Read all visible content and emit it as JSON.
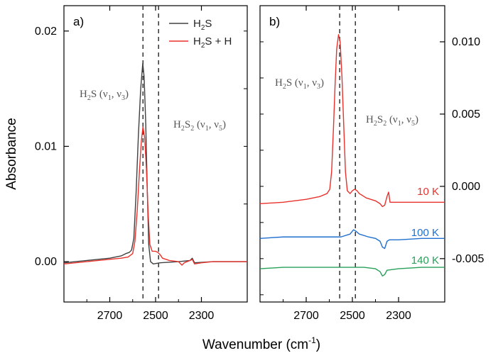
{
  "figure": {
    "xlabel": "Wavenumber (cm",
    "xlabel_sup": "-1",
    "xlabel_end": ")",
    "ylabel": "Absorbance"
  },
  "chart_data": [
    {
      "panel": "a)",
      "type": "line",
      "xlabel": "Wavenumber (cm-1)",
      "ylabel": "Absorbance",
      "xlim": [
        2900,
        2100
      ],
      "ylim": [
        -0.0035,
        0.0222
      ],
      "x_ticks": [
        "2700",
        "2500",
        "2300"
      ],
      "x_tick_values": [
        2700,
        2500,
        2300
      ],
      "y_ticks": [
        "0.00",
        "0.01",
        "0.02"
      ],
      "y_tick_values": [
        0,
        0.01,
        0.02
      ],
      "vlines": [
        2555,
        2487
      ],
      "legend": {
        "placement": "top-right",
        "entries": [
          "H2S",
          "H2S + H"
        ]
      },
      "annotations": [
        "H2S (ν1, ν3)",
        "H2S2 (ν1, ν5)"
      ],
      "series": [
        {
          "name": "H2S",
          "color": "#404040",
          "points": [
            [
              2900,
              -0.0001
            ],
            [
              2800,
              0.0001
            ],
            [
              2700,
              0.0003
            ],
            [
              2650,
              0.0005
            ],
            [
              2630,
              0.0007
            ],
            [
              2615,
              0.0008
            ],
            [
              2605,
              0.001
            ],
            [
              2595,
              0.002
            ],
            [
              2585,
              0.006
            ],
            [
              2575,
              0.011
            ],
            [
              2565,
              0.015
            ],
            [
              2556,
              0.0172
            ],
            [
              2550,
              0.016
            ],
            [
              2543,
              0.012
            ],
            [
              2536,
              0.006
            ],
            [
              2530,
              0.0015
            ],
            [
              2522,
              0.0
            ],
            [
              2510,
              -0.0002
            ],
            [
              2480,
              -0.0001
            ],
            [
              2400,
              0.0
            ],
            [
              2350,
              0.0001
            ],
            [
              2340,
              0.0003
            ],
            [
              2330,
              -0.0001
            ],
            [
              2250,
              0.0
            ],
            [
              2100,
              0.0
            ]
          ]
        },
        {
          "name": "H2S + H",
          "color": "#e8322c",
          "points": [
            [
              2900,
              -0.0002
            ],
            [
              2800,
              0.0
            ],
            [
              2700,
              0.0002
            ],
            [
              2650,
              0.0003
            ],
            [
              2620,
              0.0004
            ],
            [
              2600,
              0.0007
            ],
            [
              2590,
              0.0018
            ],
            [
              2580,
              0.0045
            ],
            [
              2570,
              0.008
            ],
            [
              2562,
              0.0105
            ],
            [
              2555,
              0.0117
            ],
            [
              2548,
              0.0108
            ],
            [
              2540,
              0.008
            ],
            [
              2532,
              0.004
            ],
            [
              2525,
              0.0015
            ],
            [
              2515,
              0.0009
            ],
            [
              2500,
              0.0009
            ],
            [
              2490,
              0.0008
            ],
            [
              2480,
              0.0006
            ],
            [
              2470,
              0.0003
            ],
            [
              2440,
              0.0001
            ],
            [
              2400,
              0.0
            ],
            [
              2385,
              -0.0003
            ],
            [
              2375,
              -0.0001
            ],
            [
              2350,
              0.0001
            ],
            [
              2340,
              0.0002
            ],
            [
              2330,
              -0.0002
            ],
            [
              2300,
              -0.0001
            ],
            [
              2250,
              0.0
            ],
            [
              2100,
              0.0
            ]
          ]
        }
      ]
    },
    {
      "panel": "b)",
      "type": "line",
      "xlim": [
        2900,
        2100
      ],
      "ylim": [
        -0.008,
        0.0125
      ],
      "x_ticks": [
        "2700",
        "2500",
        "2300"
      ],
      "x_tick_values": [
        2700,
        2500,
        2300
      ],
      "y_ticks": [
        "0.010",
        "0.005",
        "0.000",
        "-0.005"
      ],
      "y_tick_values": [
        0.01,
        0.005,
        0.0,
        -0.005
      ],
      "vlines": [
        2555,
        2487
      ],
      "annotations": [
        "H2S (ν1, ν3)",
        "H2S2 (ν1, ν5)"
      ],
      "series": [
        {
          "name": "10 K",
          "color": "#e8322c",
          "points": [
            [
              2900,
              -0.0012
            ],
            [
              2800,
              -0.0011
            ],
            [
              2700,
              -0.0009
            ],
            [
              2640,
              -0.0007
            ],
            [
              2610,
              -0.0005
            ],
            [
              2598,
              -0.0002
            ],
            [
              2590,
              0.001
            ],
            [
              2582,
              0.004
            ],
            [
              2575,
              0.007
            ],
            [
              2568,
              0.0095
            ],
            [
              2560,
              0.0105
            ],
            [
              2553,
              0.01
            ],
            [
              2545,
              0.0075
            ],
            [
              2537,
              0.004
            ],
            [
              2530,
              0.001
            ],
            [
              2522,
              -0.0003
            ],
            [
              2510,
              -0.0005
            ],
            [
              2500,
              -0.0003
            ],
            [
              2490,
              -0.0002
            ],
            [
              2480,
              -0.0003
            ],
            [
              2470,
              -0.0005
            ],
            [
              2440,
              -0.0008
            ],
            [
              2400,
              -0.001
            ],
            [
              2380,
              -0.0012
            ],
            [
              2370,
              -0.0014
            ],
            [
              2360,
              -0.0013
            ],
            [
              2350,
              -0.0007
            ],
            [
              2343,
              -0.0004
            ],
            [
              2337,
              -0.0011
            ],
            [
              2300,
              -0.0011
            ],
            [
              2200,
              -0.0011
            ],
            [
              2100,
              -0.0011
            ]
          ]
        },
        {
          "name": "100 K",
          "color": "#1f6fd1",
          "points": [
            [
              2900,
              -0.0036
            ],
            [
              2800,
              -0.0035
            ],
            [
              2700,
              -0.0035
            ],
            [
              2600,
              -0.0035
            ],
            [
              2550,
              -0.0035
            ],
            [
              2510,
              -0.0033
            ],
            [
              2495,
              -0.003
            ],
            [
              2485,
              -0.0031
            ],
            [
              2470,
              -0.0033
            ],
            [
              2430,
              -0.0035
            ],
            [
              2400,
              -0.0036
            ],
            [
              2380,
              -0.0038
            ],
            [
              2370,
              -0.0042
            ],
            [
              2360,
              -0.0043
            ],
            [
              2350,
              -0.0038
            ],
            [
              2340,
              -0.0037
            ],
            [
              2300,
              -0.0037
            ],
            [
              2200,
              -0.0036
            ],
            [
              2100,
              -0.0036
            ]
          ]
        },
        {
          "name": "140 K",
          "color": "#27a05a",
          "points": [
            [
              2900,
              -0.0057
            ],
            [
              2800,
              -0.0056
            ],
            [
              2700,
              -0.0056
            ],
            [
              2600,
              -0.0056
            ],
            [
              2500,
              -0.0056
            ],
            [
              2450,
              -0.0056
            ],
            [
              2400,
              -0.0057
            ],
            [
              2380,
              -0.0059
            ],
            [
              2370,
              -0.0062
            ],
            [
              2360,
              -0.0061
            ],
            [
              2350,
              -0.0058
            ],
            [
              2300,
              -0.0057
            ],
            [
              2200,
              -0.0056
            ],
            [
              2100,
              -0.0056
            ]
          ]
        }
      ]
    }
  ],
  "labels": {
    "panel_a": "a)",
    "panel_b": "b)",
    "legend_h2s_prefix": "H",
    "legend_h2s_sub": "2",
    "legend_h2s_suffix": "S",
    "legend_h2sh_suffix": "S + H",
    "ann_h2s_a": "H",
    "ann_h2s_b": "S (ν",
    "ann_h2s_c": ", ν",
    "ann_h2s_d": ")",
    "ann_sub_1": "1",
    "ann_sub_3": "3",
    "ann_sub_5": "5",
    "ann_sub_2": "2",
    "ann_h2s2_a": "H",
    "ann_h2s2_b": "S",
    "ann_h2s2_c": " (ν",
    "temp_10": "10 K",
    "temp_100": "100 K",
    "temp_140": "140 K"
  }
}
